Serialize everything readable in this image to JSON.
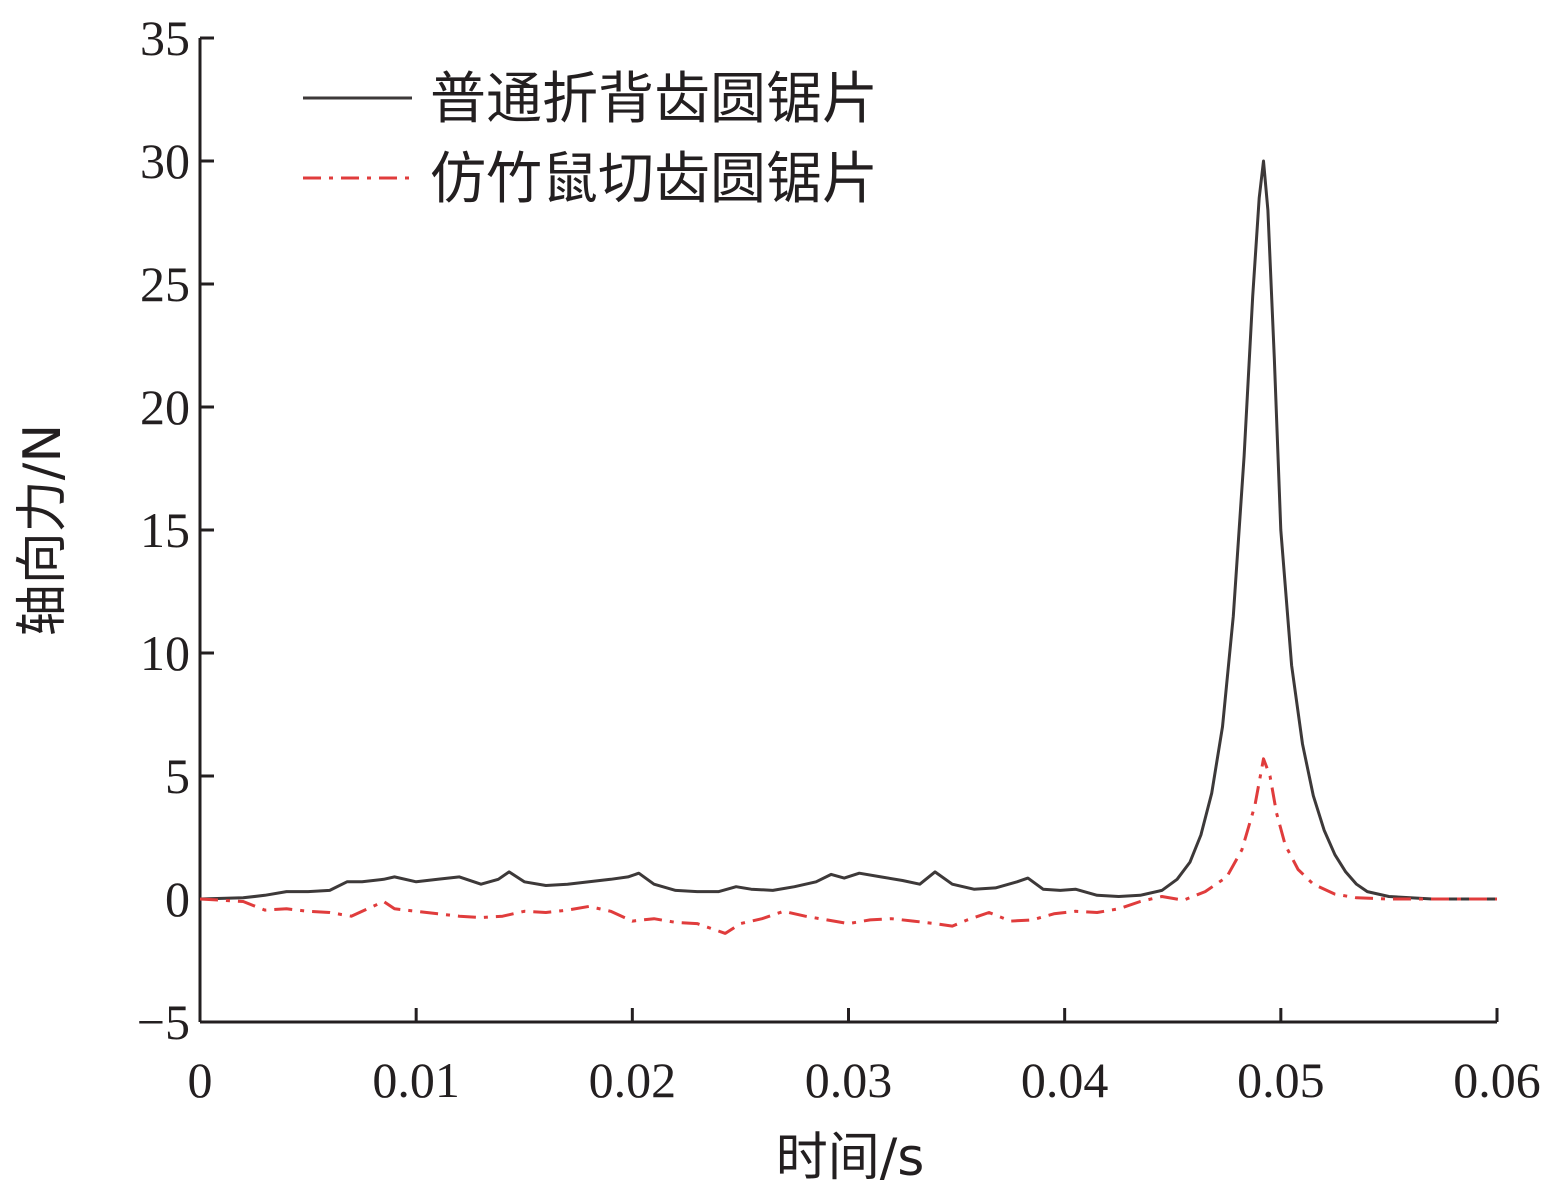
{
  "chart_data": {
    "type": "line",
    "xlabel": "时间/s",
    "ylabel": "轴向力/N",
    "xlim": [
      0,
      0.06
    ],
    "ylim": [
      -5,
      35
    ],
    "x_ticks": [
      0,
      0.01,
      0.02,
      0.03,
      0.04,
      0.05,
      0.06
    ],
    "x_tick_labels": [
      "0",
      "0.01",
      "0.02",
      "0.03",
      "0.04",
      "0.05",
      "0.06"
    ],
    "y_ticks": [
      -5,
      0,
      5,
      10,
      15,
      20,
      25,
      30,
      35
    ],
    "y_tick_labels": [
      "−5",
      "0",
      "5",
      "10",
      "15",
      "20",
      "25",
      "30",
      "35"
    ],
    "grid": false,
    "legend_position": "top-left",
    "series": [
      {
        "name": "普通折背齿圆锯片",
        "color": "#3d3939",
        "style": "solid",
        "x": [
          0,
          0.002,
          0.003,
          0.004,
          0.005,
          0.006,
          0.0068,
          0.0075,
          0.0085,
          0.009,
          0.01,
          0.011,
          0.012,
          0.013,
          0.0138,
          0.0143,
          0.015,
          0.016,
          0.017,
          0.018,
          0.019,
          0.0198,
          0.0203,
          0.021,
          0.022,
          0.023,
          0.024,
          0.0248,
          0.0255,
          0.0265,
          0.0275,
          0.0285,
          0.0292,
          0.0298,
          0.0305,
          0.0315,
          0.0325,
          0.0333,
          0.034,
          0.0348,
          0.0358,
          0.0368,
          0.0378,
          0.0383,
          0.039,
          0.0398,
          0.0405,
          0.0415,
          0.0425,
          0.0435,
          0.0445,
          0.0452,
          0.0458,
          0.0463,
          0.0468,
          0.0473,
          0.0478,
          0.0483,
          0.0487,
          0.049,
          0.0492,
          0.0494,
          0.0497,
          0.05,
          0.0505,
          0.051,
          0.0515,
          0.052,
          0.0525,
          0.053,
          0.0535,
          0.054,
          0.055,
          0.056,
          0.057,
          0.06
        ],
        "values": [
          0,
          0.05,
          0.15,
          0.3,
          0.3,
          0.35,
          0.7,
          0.7,
          0.8,
          0.9,
          0.7,
          0.8,
          0.9,
          0.6,
          0.8,
          1.1,
          0.7,
          0.55,
          0.6,
          0.7,
          0.8,
          0.9,
          1.05,
          0.6,
          0.35,
          0.3,
          0.3,
          0.5,
          0.4,
          0.35,
          0.5,
          0.7,
          1.0,
          0.85,
          1.05,
          0.9,
          0.75,
          0.6,
          1.1,
          0.6,
          0.4,
          0.45,
          0.7,
          0.85,
          0.4,
          0.35,
          0.4,
          0.15,
          0.1,
          0.15,
          0.35,
          0.8,
          1.5,
          2.6,
          4.3,
          7.0,
          11.5,
          18.0,
          24.5,
          28.5,
          30.0,
          28.0,
          22.0,
          15.0,
          9.5,
          6.3,
          4.2,
          2.8,
          1.8,
          1.1,
          0.6,
          0.3,
          0.1,
          0.05,
          0.0,
          0.0
        ]
      },
      {
        "name": "仿竹鼠切齿圆锯片",
        "color": "#e03c3c",
        "style": "dashdot",
        "x": [
          0,
          0.002,
          0.003,
          0.004,
          0.005,
          0.006,
          0.007,
          0.008,
          0.0085,
          0.009,
          0.01,
          0.011,
          0.012,
          0.013,
          0.014,
          0.015,
          0.016,
          0.017,
          0.018,
          0.019,
          0.02,
          0.021,
          0.022,
          0.023,
          0.0243,
          0.025,
          0.026,
          0.027,
          0.028,
          0.029,
          0.03,
          0.031,
          0.032,
          0.033,
          0.034,
          0.0348,
          0.0355,
          0.0365,
          0.0375,
          0.0385,
          0.0395,
          0.0405,
          0.0415,
          0.0425,
          0.0435,
          0.0445,
          0.0455,
          0.0465,
          0.0475,
          0.0482,
          0.0488,
          0.0492,
          0.0495,
          0.0498,
          0.0502,
          0.0508,
          0.0515,
          0.0525,
          0.0535,
          0.055,
          0.06
        ],
        "values": [
          0,
          -0.1,
          -0.45,
          -0.4,
          -0.5,
          -0.55,
          -0.7,
          -0.3,
          -0.1,
          -0.4,
          -0.5,
          -0.6,
          -0.7,
          -0.75,
          -0.7,
          -0.5,
          -0.55,
          -0.45,
          -0.3,
          -0.5,
          -0.9,
          -0.8,
          -0.95,
          -1.0,
          -1.4,
          -1.0,
          -0.8,
          -0.5,
          -0.7,
          -0.85,
          -1.0,
          -0.85,
          -0.8,
          -0.9,
          -1.0,
          -1.1,
          -0.85,
          -0.55,
          -0.9,
          -0.85,
          -0.6,
          -0.5,
          -0.55,
          -0.4,
          -0.1,
          0.1,
          -0.05,
          0.3,
          0.9,
          2.0,
          3.8,
          5.7,
          5.0,
          3.5,
          2.2,
          1.2,
          0.6,
          0.2,
          0.05,
          0.0,
          0.0
        ]
      }
    ]
  }
}
